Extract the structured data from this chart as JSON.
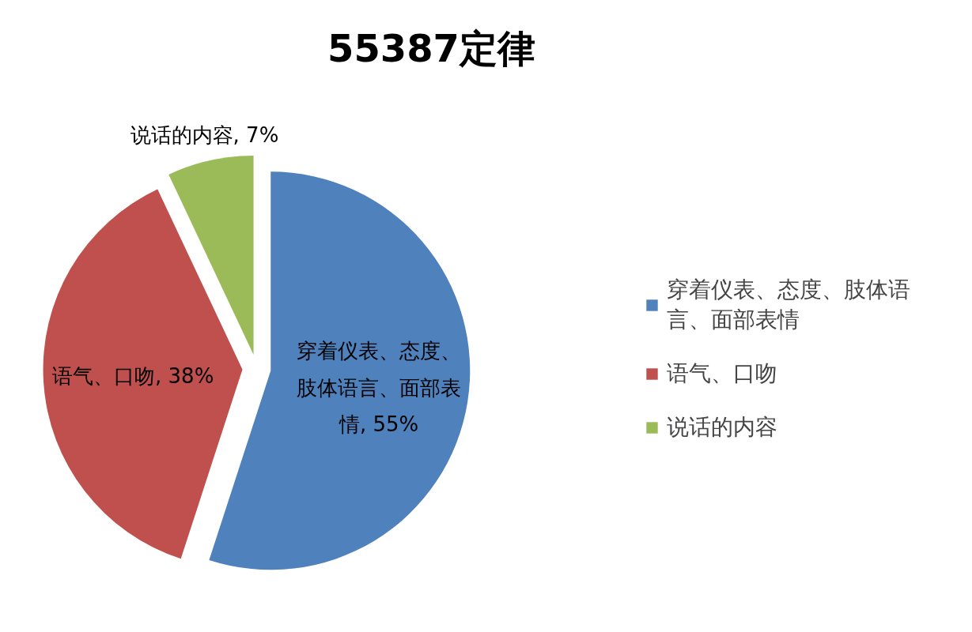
{
  "chart_data": {
    "type": "pie",
    "title": "55387定律",
    "categories": [
      "穿着仪表、态度、肢体语言、面部表情",
      "语气、口吻",
      "说话的内容"
    ],
    "values": [
      55,
      38,
      7
    ],
    "colors": [
      "#4f81bd",
      "#c0504d",
      "#9bbb59"
    ],
    "value_labels": [
      "穿着仪表、态度、肢体语言、面部表情, 55%",
      "语气、口吻, 38%",
      "说话的内容, 7%"
    ],
    "legend": "right"
  }
}
